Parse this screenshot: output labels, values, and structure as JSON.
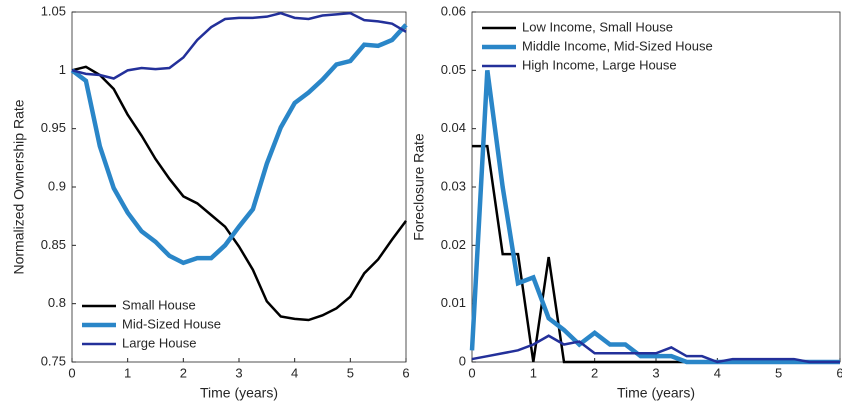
{
  "chart_data": [
    {
      "type": "line",
      "xlabel": "Time (years)",
      "ylabel": "Normalized Ownership Rate",
      "x": [
        0,
        0.25,
        0.5,
        0.75,
        1,
        1.25,
        1.5,
        1.75,
        2,
        2.25,
        2.5,
        2.75,
        3,
        3.25,
        3.5,
        3.75,
        4,
        4.25,
        4.5,
        4.75,
        5,
        5.25,
        5.5,
        5.75,
        6
      ],
      "xlim": [
        0,
        6
      ],
      "xticks": [
        0,
        1,
        2,
        3,
        4,
        5,
        6
      ],
      "ylim": [
        0.75,
        1.05
      ],
      "yticks": [
        0.75,
        0.8,
        0.85,
        0.9,
        0.95,
        1,
        1.05
      ],
      "legend": "lower left",
      "series": [
        {
          "name": "Small House",
          "color": "#000000",
          "width": 2.5,
          "values": [
            1,
            1.003,
            0.996,
            0.984,
            0.962,
            0.944,
            0.924,
            0.907,
            0.892,
            0.886,
            0.876,
            0.866,
            0.849,
            0.829,
            0.802,
            0.789,
            0.787,
            0.786,
            0.79,
            0.796,
            0.806,
            0.826,
            0.838,
            0.855,
            0.871
          ]
        },
        {
          "name": "Mid-Sized House",
          "color": "#2a86c8",
          "width": 4.5,
          "values": [
            1,
            0.991,
            0.935,
            0.899,
            0.878,
            0.862,
            0.853,
            0.841,
            0.835,
            0.839,
            0.839,
            0.85,
            0.866,
            0.881,
            0.92,
            0.951,
            0.972,
            0.981,
            0.992,
            1.005,
            1.008,
            1.022,
            1.021,
            1.026,
            1.039
          ]
        },
        {
          "name": "Large House",
          "color": "#23309a",
          "width": 2.5,
          "values": [
            1,
            0.997,
            0.996,
            0.993,
            1,
            1.002,
            1.001,
            1.002,
            1.011,
            1.026,
            1.037,
            1.044,
            1.045,
            1.045,
            1.046,
            1.049,
            1.045,
            1.044,
            1.047,
            1.048,
            1.049,
            1.043,
            1.042,
            1.04,
            1.033
          ]
        }
      ]
    },
    {
      "type": "line",
      "xlabel": "Time (years)",
      "ylabel": "Foreclosure Rate",
      "x": [
        0,
        0.25,
        0.5,
        0.75,
        1,
        1.25,
        1.5,
        1.75,
        2,
        2.25,
        2.5,
        2.75,
        3,
        3.25,
        3.5,
        3.75,
        4,
        4.25,
        4.5,
        4.75,
        5,
        5.25,
        5.5,
        5.75,
        6
      ],
      "xlim": [
        0,
        6
      ],
      "xticks": [
        0,
        1,
        2,
        3,
        4,
        5,
        6
      ],
      "ylim": [
        0,
        0.06
      ],
      "yticks": [
        0,
        0.01,
        0.02,
        0.03,
        0.04,
        0.05,
        0.06
      ],
      "legend": "upper left",
      "series": [
        {
          "name": "Low Income, Small House",
          "color": "#000000",
          "width": 2.5,
          "values": [
            0.037,
            0.037,
            0.0185,
            0.0185,
            0,
            0.018,
            0,
            0,
            0,
            0,
            0,
            0,
            0,
            0,
            0,
            0,
            0,
            0,
            0,
            0,
            0,
            0,
            0,
            0,
            0
          ]
        },
        {
          "name": "Middle Income, Mid-Sized House",
          "color": "#2a86c8",
          "width": 4.5,
          "values": [
            0.002,
            0.05,
            0.03,
            0.0135,
            0.0145,
            0.0075,
            0.0055,
            0.003,
            0.005,
            0.003,
            0.003,
            0.001,
            0.001,
            0.001,
            0,
            0,
            0,
            0,
            0,
            0,
            0,
            0,
            0,
            0,
            0
          ]
        },
        {
          "name": "High Income, Large House",
          "color": "#23309a",
          "width": 2.5,
          "values": [
            0.0005,
            0.001,
            0.0015,
            0.002,
            0.003,
            0.0045,
            0.003,
            0.0035,
            0.0015,
            0.0015,
            0.0015,
            0.0015,
            0.0015,
            0.0025,
            0.001,
            0.001,
            0,
            0.0005,
            0.0005,
            0.0005,
            0.0005,
            0.0005,
            0,
            0,
            0
          ]
        }
      ]
    }
  ]
}
